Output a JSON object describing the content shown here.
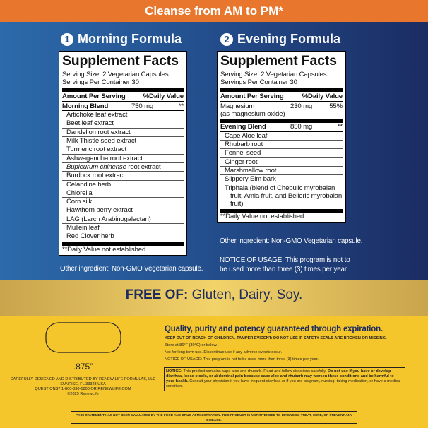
{
  "banner": "Cleanse from AM to PM*",
  "morning": {
    "number": "1",
    "title": "Morning Formula",
    "facts": {
      "heading": "Supplement Facts",
      "serving_size": "Serving Size: 2 Vegetarian Capsules",
      "servings": "Servings Per Container 30",
      "amount_header": "Amount Per Serving",
      "dv_header": "%Daily Value",
      "blend": {
        "name": "Morning Blend",
        "amount": "750 mg",
        "dv": "**"
      },
      "ingredients": [
        "Artichoke leaf extract",
        "Beet leaf extract",
        "Dandelion root extract",
        "Milk Thistle seed extract",
        "Turmeric root extract",
        "Ashwagandha root extract",
        {
          "italic": "Bupleurum chinense",
          "rest": "root extract"
        },
        "Burdock root extract",
        "Celandine herb",
        "Chlorella",
        "Corn silk",
        "Hawthorn berry extract",
        "LAG (Larch Arabinogalactan)",
        "Mullein leaf",
        "Red Clover herb"
      ],
      "footnote": "**Daily Value not established."
    },
    "other": "Other ingredient: Non-GMO Vegetarian capsule."
  },
  "evening": {
    "number": "2",
    "title": "Evening Formula",
    "facts": {
      "heading": "Supplement Facts",
      "serving_size": "Serving Size: 2 Vegetarian Capsules",
      "servings": "Servings Per Container 30",
      "amount_header": "Amount Per Serving",
      "dv_header": "%Daily Value",
      "nutrient": {
        "name": "Magnesium",
        "note": "(as magnesium oxide)",
        "amount": "230 mg",
        "dv": "55%"
      },
      "blend": {
        "name": "Evening Blend",
        "amount": "850 mg",
        "dv": "**"
      },
      "ingredients": [
        "Cape Aloe leaf",
        "Rhubarb root",
        "Fennel seed",
        "Ginger root",
        "Marshmallow root",
        "Slippery Elm bark",
        "Triphala (blend of Chebulic myrobalan fruit, Amla fruit, and Belleric myrobalan fruit)"
      ],
      "footnote": "**Daily Value not established."
    },
    "other": "Other ingredient: Non-GMO Vegetarian capsule.",
    "notice": "NOTICE OF USAGE: This program is not to be used more than three (3) times per year."
  },
  "free_of": {
    "label": "FREE OF:",
    "items": "Gluten, Dairy, Soy."
  },
  "capsule_size": ".875”",
  "distributor": [
    "CAREFULLY DESIGNED AND DISTRIBUTED BY RENEW LIFE FORMULAS, LLC",
    "SUNRISE, FL 33323 USA",
    "QUESTIONS? 1-800-830-1800 OR RENEWLIFE.COM",
    "©2025 RenewLife"
  ],
  "quality": "Quality, purity and potency guaranteed through expiration.",
  "warnings": [
    "KEEP OUT OF REACH OF CHILDREN. TAMPER EVIDENT: DO NOT USE IF SAFETY SEALS ARE BROKEN OR MISSING.",
    "Store at 86°F (30°C) or below.",
    "Not for long term use. Discontinue use if any adverse events occur.",
    "NOTICE OF USAGE: This program is not to be used more than three (3) times per year."
  ],
  "notice_box": {
    "label": "NOTICE:",
    "text1": "This product contains cape aloe and rhubarb. Read and follow directions carefully.",
    "bold": "Do not use if you have or develop diarrhea, loose stools, or abdominal pain because cape aloe and rhubarb may worsen these conditions and be harmful to your health.",
    "text2": "Consult your physician if you have frequent diarrhea or if you are pregnant, nursing, taking medication, or have a medical condition."
  },
  "disclaimer": "*THIS STATEMENT HAS NOT BEEN EVALUATED BY THE FOOD AND DRUG ADMINISTRATION. THIS PRODUCT IS NOT INTENDED TO DIAGNOSE, TREAT, CURE, OR PREVENT ANY DISEASE."
}
